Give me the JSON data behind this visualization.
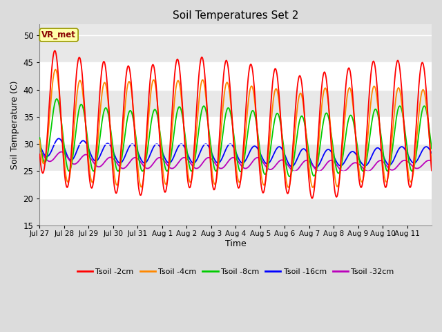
{
  "title": "Soil Temperatures Set 2",
  "xlabel": "Time",
  "ylabel": "Soil Temperature (C)",
  "ylim": [
    15,
    52
  ],
  "yticks": [
    15,
    20,
    25,
    30,
    35,
    40,
    45,
    50
  ],
  "bg_color": "#dcdcdc",
  "plot_bg_light": "#e8e8e8",
  "plot_bg_dark": "#d0d0d0",
  "grid_color": "white",
  "annotation_text": "VR_met",
  "annotation_bg": "#ffffaa",
  "annotation_border": "#999900",
  "series_colors": {
    "2cm": "#ff0000",
    "4cm": "#ff8800",
    "8cm": "#00cc00",
    "16cm": "#0000ff",
    "32cm": "#bb00bb"
  },
  "legend_labels": [
    "Tsoil -2cm",
    "Tsoil -4cm",
    "Tsoil -8cm",
    "Tsoil -16cm",
    "Tsoil -32cm"
  ],
  "x_tick_labels": [
    "Jul 27",
    "Jul 28",
    "Jul 29",
    "Jul 30",
    "Jul 31",
    "Aug 1",
    "Aug 2",
    "Aug 3",
    "Aug 4",
    "Aug 5",
    "Aug 6",
    "Aug 7",
    "Aug 8",
    "Aug 9",
    "Aug 10",
    "Aug 11"
  ],
  "num_days": 16,
  "points_per_day": 48
}
